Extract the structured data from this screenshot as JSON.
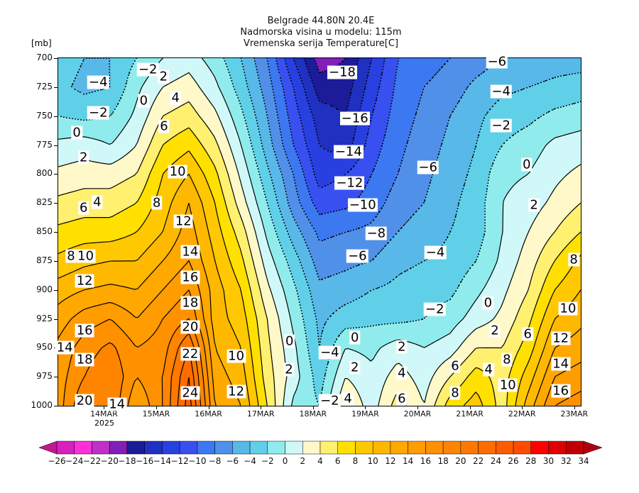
{
  "chart_data": {
    "type": "heatmap",
    "title": [
      "Belgrade  44.80N 20.4E",
      "Nadmorska visina u modelu: 115m",
      "Vremenska serija Temperature[C]"
    ],
    "ylabel": "[mb]",
    "y_levels": [
      700,
      725,
      750,
      775,
      800,
      825,
      850,
      875,
      900,
      925,
      950,
      975,
      1000
    ],
    "ylim": [
      700,
      1000
    ],
    "time_units": "days since 13MAR 00Z",
    "xlim": [
      0.125,
      10.125
    ],
    "grid_time_start": 0.125,
    "grid_time_step": 0.5,
    "x_ticks": [
      {
        "t": 1,
        "label": "14MAR"
      },
      {
        "t": 2,
        "label": "15MAR"
      },
      {
        "t": 3,
        "label": "16MAR"
      },
      {
        "t": 4,
        "label": "17MAR"
      },
      {
        "t": 5,
        "label": "18MAR"
      },
      {
        "t": 6,
        "label": "19MAR"
      },
      {
        "t": 7,
        "label": "20MAR"
      },
      {
        "t": 8,
        "label": "21MAR"
      },
      {
        "t": 9,
        "label": "22MAR"
      },
      {
        "t": 10,
        "label": "23MAR"
      }
    ],
    "year_label": "2025",
    "contour_interval": 2,
    "values_by_time": [
      [
        -3,
        -3.5,
        -2,
        0.5,
        2.5,
        4.5,
        6.5,
        8.5,
        11,
        13,
        14.5,
        15,
        15
      ],
      [
        -4,
        -4.5,
        -2.5,
        1,
        3,
        5,
        7,
        9.5,
        12,
        15,
        17,
        18,
        20
      ],
      [
        -4,
        -4,
        -2,
        0,
        3,
        5,
        7,
        10,
        12.5,
        16,
        18.5,
        20,
        20
      ],
      [
        -2,
        -0.5,
        0.5,
        2,
        4,
        6,
        8,
        10,
        12,
        14,
        16,
        16,
        14
      ],
      [
        0,
        2,
        4,
        6,
        8,
        9,
        10,
        12,
        14,
        16,
        17,
        18,
        18
      ],
      [
        1,
        3,
        5,
        7.5,
        10,
        12,
        13,
        14,
        16,
        18,
        22,
        24,
        25
      ],
      [
        -1,
        0.5,
        2.5,
        4.5,
        6.5,
        8,
        9,
        10,
        11,
        11,
        12,
        13,
        14
      ],
      [
        -4,
        -3,
        -1.5,
        0,
        1.5,
        3,
        5,
        6.5,
        8,
        9,
        10,
        11,
        12
      ],
      [
        -8,
        -7,
        -6,
        -5,
        -3.5,
        -2,
        -0.5,
        1,
        2.5,
        4,
        4.5,
        5,
        6
      ],
      [
        -14,
        -12,
        -11,
        -10,
        -8,
        -7,
        -5,
        -3,
        -1.5,
        -0.5,
        0.5,
        1,
        -0.5
      ],
      [
        -19,
        -17,
        -15,
        -14,
        -13,
        -11,
        -8.5,
        -7,
        -5.5,
        -4.5,
        -4,
        -3,
        -2
      ],
      [
        -18,
        -17,
        -16,
        -15,
        -12,
        -10.5,
        -8,
        -6.5,
        -5,
        -3,
        0,
        2,
        4
      ],
      [
        -14,
        -13,
        -12,
        -11,
        -10,
        -9,
        -7.5,
        -6,
        -4,
        -2.5,
        -0.5,
        0.5,
        1
      ],
      [
        -10,
        -9.5,
        -9,
        -8.5,
        -8,
        -7,
        -6,
        -4.5,
        -3.5,
        -2.5,
        1,
        3,
        5
      ],
      [
        -9,
        -8,
        -7.5,
        -7,
        -6.5,
        -6,
        -5,
        -4,
        -3,
        -2,
        0,
        1,
        2
      ],
      [
        -8,
        -7,
        -6,
        -5.5,
        -5,
        -4.5,
        -4,
        -3.5,
        -2.5,
        -1,
        1,
        4,
        7
      ],
      [
        -7,
        -5.5,
        -4.5,
        -4,
        -3.5,
        -3,
        -3,
        -2,
        -0.5,
        1,
        4,
        7,
        9
      ],
      [
        -6,
        -4.5,
        -3,
        -2,
        -0.5,
        0,
        0,
        0.5,
        1.5,
        2.5,
        4,
        5,
        5
      ],
      [
        -5.5,
        -4,
        -2.5,
        -1,
        0,
        1,
        2,
        3,
        4,
        5.5,
        7,
        9,
        11
      ],
      [
        -5,
        -3.5,
        -1.5,
        0.5,
        1.5,
        2.5,
        4,
        6,
        8,
        10,
        12,
        14,
        16
      ],
      [
        -5,
        -3,
        -1,
        1,
        2.5,
        4,
        6,
        8.5,
        10,
        11.5,
        13,
        15,
        17
      ]
    ],
    "contour_labels": [
      {
        "t": 5.56,
        "p": 712,
        "text": "-18"
      },
      {
        "t": 5.8,
        "p": 752,
        "text": "-16"
      },
      {
        "t": 5.68,
        "p": 781,
        "text": "-14"
      },
      {
        "t": 5.7,
        "p": 808,
        "text": "-12"
      },
      {
        "t": 5.95,
        "p": 827,
        "text": "-10"
      },
      {
        "t": 6.21,
        "p": 851,
        "text": "-8"
      },
      {
        "t": 5.85,
        "p": 871,
        "text": "-6"
      },
      {
        "t": 7.34,
        "p": 868,
        "text": "-4"
      },
      {
        "t": 7.2,
        "p": 794,
        "text": "-6"
      },
      {
        "t": 0.89,
        "p": 721,
        "text": "-4"
      },
      {
        "t": 0.89,
        "p": 747,
        "text": "-2"
      },
      {
        "t": 0.48,
        "p": 764,
        "text": "0"
      },
      {
        "t": 0.61,
        "p": 786,
        "text": "2"
      },
      {
        "t": 0.87,
        "p": 824,
        "text": "4"
      },
      {
        "t": 0.61,
        "p": 829,
        "text": "6"
      },
      {
        "t": 0.37,
        "p": 871,
        "text": "8"
      },
      {
        "t": 0.65,
        "p": 871,
        "text": "10"
      },
      {
        "t": 0.63,
        "p": 892,
        "text": "12"
      },
      {
        "t": 0.63,
        "p": 935,
        "text": "16"
      },
      {
        "t": 0.25,
        "p": 950,
        "text": "14"
      },
      {
        "t": 0.63,
        "p": 960,
        "text": "18"
      },
      {
        "t": 0.63,
        "p": 996,
        "text": "20"
      },
      {
        "t": 1.25,
        "p": 999,
        "text": "14"
      },
      {
        "t": 1.84,
        "p": 710,
        "text": "-2"
      },
      {
        "t": 2.14,
        "p": 716,
        "text": "2"
      },
      {
        "t": 1.76,
        "p": 737,
        "text": "0"
      },
      {
        "t": 2.37,
        "p": 734,
        "text": "4"
      },
      {
        "t": 2.15,
        "p": 759,
        "text": "6"
      },
      {
        "t": 2.41,
        "p": 798,
        "text": "10"
      },
      {
        "t": 2.01,
        "p": 825,
        "text": "8"
      },
      {
        "t": 2.52,
        "p": 841,
        "text": "12"
      },
      {
        "t": 2.65,
        "p": 867,
        "text": "14"
      },
      {
        "t": 2.65,
        "p": 889,
        "text": "16"
      },
      {
        "t": 2.65,
        "p": 911,
        "text": "18"
      },
      {
        "t": 2.65,
        "p": 932,
        "text": "20"
      },
      {
        "t": 2.65,
        "p": 955,
        "text": "22"
      },
      {
        "t": 2.65,
        "p": 989,
        "text": "24"
      },
      {
        "t": 3.53,
        "p": 957,
        "text": "10"
      },
      {
        "t": 3.53,
        "p": 988,
        "text": "12"
      },
      {
        "t": 4.55,
        "p": 944,
        "text": "0"
      },
      {
        "t": 4.54,
        "p": 969,
        "text": "2"
      },
      {
        "t": 5.32,
        "p": 954,
        "text": "-4"
      },
      {
        "t": 5.8,
        "p": 941,
        "text": "0"
      },
      {
        "t": 5.8,
        "p": 967,
        "text": "2"
      },
      {
        "t": 5.32,
        "p": 996,
        "text": "-2"
      },
      {
        "t": 5.67,
        "p": 994,
        "text": "4"
      },
      {
        "t": 6.7,
        "p": 949,
        "text": "2"
      },
      {
        "t": 6.7,
        "p": 972,
        "text": "4"
      },
      {
        "t": 6.7,
        "p": 994,
        "text": "6"
      },
      {
        "t": 7.33,
        "p": 917,
        "text": "-2"
      },
      {
        "t": 8.35,
        "p": 911,
        "text": "0"
      },
      {
        "t": 8.48,
        "p": 935,
        "text": "2"
      },
      {
        "t": 9.11,
        "p": 938,
        "text": "6"
      },
      {
        "t": 8.71,
        "p": 960,
        "text": "8"
      },
      {
        "t": 8.36,
        "p": 969,
        "text": "4"
      },
      {
        "t": 7.72,
        "p": 966,
        "text": "6"
      },
      {
        "t": 7.72,
        "p": 989,
        "text": "8"
      },
      {
        "t": 8.73,
        "p": 982,
        "text": "10"
      },
      {
        "t": 9.74,
        "p": 942,
        "text": "12"
      },
      {
        "t": 9.74,
        "p": 964,
        "text": "14"
      },
      {
        "t": 9.74,
        "p": 987,
        "text": "16"
      },
      {
        "t": 9.88,
        "p": 916,
        "text": "10"
      },
      {
        "t": 9.99,
        "p": 874,
        "text": "8"
      },
      {
        "t": 8.52,
        "p": 703,
        "text": "-6"
      },
      {
        "t": 8.6,
        "p": 729,
        "text": "-4"
      },
      {
        "t": 8.6,
        "p": 758,
        "text": "-2"
      },
      {
        "t": 9.09,
        "p": 792,
        "text": "0"
      },
      {
        "t": 9.23,
        "p": 827,
        "text": "2"
      }
    ],
    "colorbar": {
      "labels": [
        "-26",
        "-24",
        "-22",
        "-20",
        "-18",
        "-16",
        "-14",
        "-12",
        "-10",
        "-8",
        "-6",
        "-4",
        "-2",
        "0",
        "2",
        "4",
        "6",
        "8",
        "10",
        "12",
        "14",
        "16",
        "18",
        "20",
        "22",
        "24",
        "26",
        "28",
        "30",
        "32",
        "34"
      ],
      "min": -26,
      "step": 2,
      "colors": [
        "#c01890",
        "#d820c0",
        "#ff30d8",
        "#c030c8",
        "#8020b8",
        "#1c1c98",
        "#2030c0",
        "#2840e0",
        "#3850f0",
        "#3c78f0",
        "#5090e8",
        "#58b8e8",
        "#60d0e8",
        "#90ecec",
        "#d0f8f8",
        "#fff8c8",
        "#fff070",
        "#ffe000",
        "#ffc800",
        "#ffb800",
        "#ffa800",
        "#ff9c00",
        "#ff9000",
        "#ff8400",
        "#ff7800",
        "#ff6c00",
        "#ff5c00",
        "#ff4c00",
        "#ff0000",
        "#e00000",
        "#c00000",
        "#b00010"
      ]
    }
  }
}
